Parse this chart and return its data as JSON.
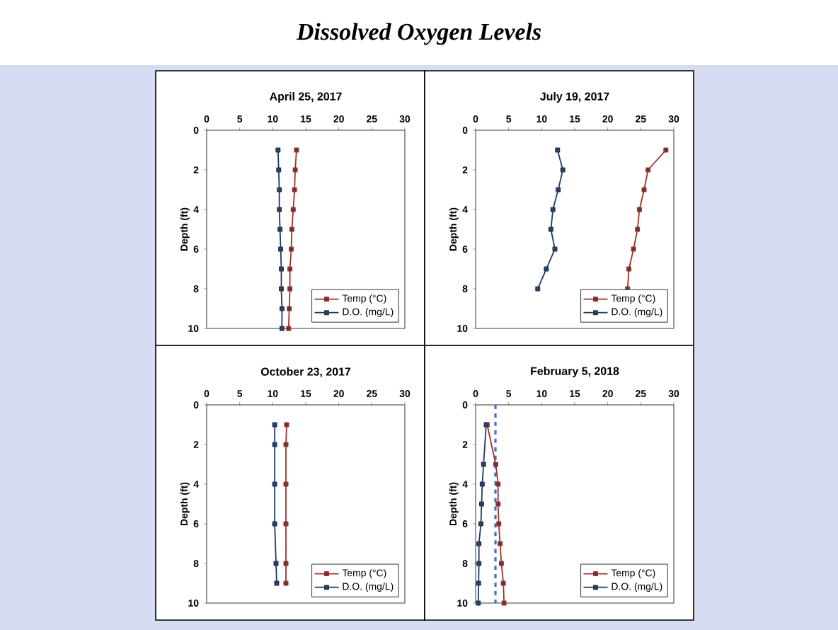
{
  "chart_data": [
    {
      "type": "line",
      "title": "April 25, 2017",
      "annotations": [
        "Dissolved Oxygen Levels"
      ],
      "ylabel": "Depth (ft)",
      "xlim": [
        0,
        30
      ],
      "xticks": [
        0,
        5,
        10,
        15,
        20,
        25,
        30
      ],
      "ylim": [
        10,
        0
      ],
      "yticks": [
        0,
        2,
        4,
        6,
        8,
        10
      ],
      "legend": "bottom right",
      "marker": "square",
      "series": [
        {
          "name": "Temp (°C)",
          "color": "#a0302c",
          "x": [
            13.6,
            13.4,
            13.3,
            13.1,
            12.9,
            12.8,
            12.6,
            12.6,
            12.5,
            12.4
          ],
          "values": [
            1,
            2,
            3,
            4,
            5,
            6,
            7,
            8,
            9,
            10
          ]
        },
        {
          "name": "D.O. (mg/L)",
          "color": "#1f3864",
          "x": [
            10.8,
            10.9,
            11.0,
            11.0,
            11.1,
            11.2,
            11.3,
            11.3,
            11.4,
            11.4
          ],
          "values": [
            1,
            2,
            3,
            4,
            5,
            6,
            7,
            8,
            9,
            10
          ]
        }
      ]
    },
    {
      "type": "line",
      "title": "July 19, 2017",
      "ylabel": "Depth (ft)",
      "xlim": [
        0,
        30
      ],
      "xticks": [
        0,
        5,
        10,
        15,
        20,
        25,
        30
      ],
      "ylim": [
        10,
        0
      ],
      "yticks": [
        0,
        2,
        4,
        6,
        8,
        10
      ],
      "legend": "bottom right",
      "marker": "square",
      "series": [
        {
          "name": "Temp (°C)",
          "color": "#a0302c",
          "x": [
            28.8,
            26.1,
            25.5,
            24.8,
            24.5,
            23.9,
            23.2,
            23.0
          ],
          "values": [
            1,
            2,
            3,
            4,
            5,
            6,
            7,
            8
          ]
        },
        {
          "name": "D.O. (mg/L)",
          "color": "#1f3864",
          "x": [
            12.4,
            13.2,
            12.5,
            11.7,
            11.4,
            12.0,
            10.7,
            9.4
          ],
          "values": [
            1,
            2,
            3,
            4,
            5,
            6,
            7,
            8
          ]
        }
      ]
    },
    {
      "type": "line",
      "title": "October 23, 2017",
      "ylabel": "Depth (ft)",
      "xlim": [
        0,
        30
      ],
      "xticks": [
        0,
        5,
        10,
        15,
        20,
        25,
        30
      ],
      "ylim": [
        10,
        0
      ],
      "yticks": [
        0,
        2,
        4,
        6,
        8,
        10
      ],
      "legend": "bottom right",
      "marker": "square",
      "series": [
        {
          "name": "Temp (°C)",
          "color": "#a0302c",
          "x": [
            12.1,
            12.0,
            12.0,
            12.0,
            12.0,
            12.0
          ],
          "values": [
            1,
            2,
            4,
            6,
            8,
            9
          ]
        },
        {
          "name": "D.O. (mg/L)",
          "color": "#1f3864",
          "x": [
            10.3,
            10.3,
            10.3,
            10.3,
            10.5,
            10.6
          ],
          "values": [
            1,
            2,
            4,
            6,
            8,
            9
          ]
        }
      ]
    },
    {
      "type": "line",
      "title": "February 5, 2018",
      "ylabel": "Depth (ft)",
      "xlim": [
        0,
        30
      ],
      "xticks": [
        0,
        5,
        10,
        15,
        20,
        25,
        30
      ],
      "ylim": [
        10,
        0
      ],
      "yticks": [
        0,
        2,
        4,
        6,
        8,
        10
      ],
      "legend": "bottom right",
      "marker": "square",
      "ref_lines": [
        {
          "axis": "x",
          "value": 3,
          "color": "#4472c4",
          "line_style": "dashed"
        }
      ],
      "series": [
        {
          "name": "Temp (°C)",
          "color": "#a0302c",
          "x": [
            1.75,
            3.05,
            3.4,
            3.4,
            3.5,
            3.7,
            3.9,
            4.2,
            4.3
          ],
          "values": [
            1,
            3,
            4,
            5,
            6,
            7,
            8,
            9,
            10
          ]
        },
        {
          "name": "D.O. (mg/L)",
          "color": "#1f3864",
          "x": [
            1.6,
            1.2,
            1.0,
            0.9,
            0.8,
            0.5,
            0.5,
            0.45,
            0.4
          ],
          "values": [
            1,
            3,
            4,
            5,
            6,
            7,
            8,
            9,
            10
          ]
        }
      ]
    }
  ]
}
